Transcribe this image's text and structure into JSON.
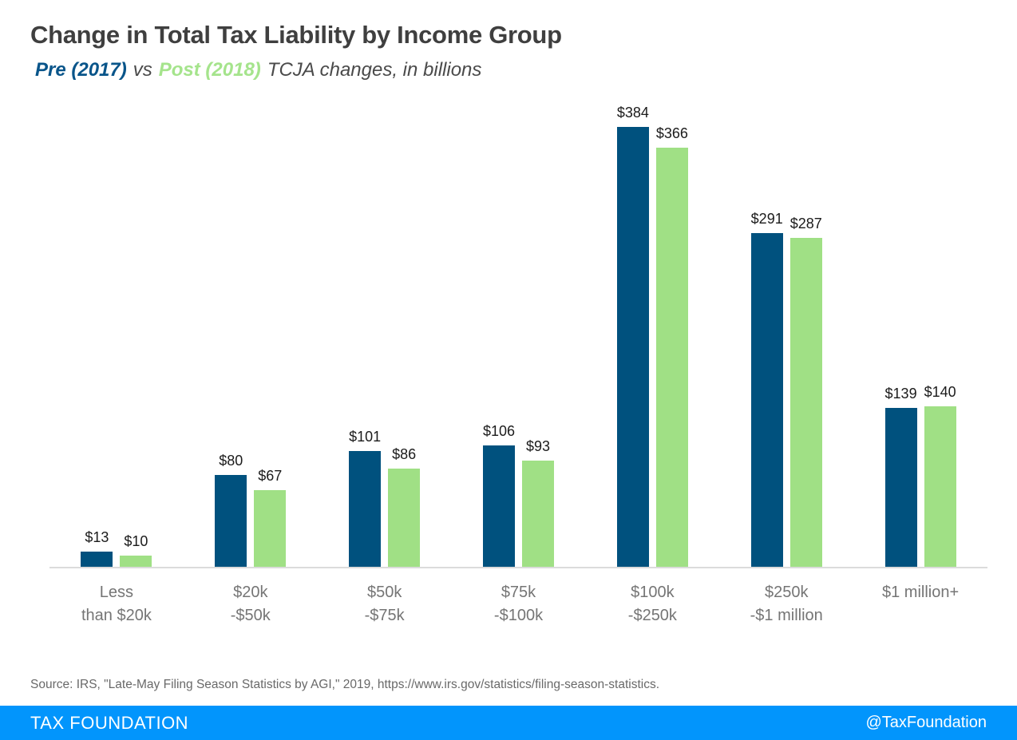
{
  "header": {
    "title": "Change in Total Tax Liability by Income Group",
    "subtitle": {
      "pre_label": "Pre (2017)",
      "vs": "vs",
      "post_label": "Post (2018)",
      "rest": "TCJA changes, in billions"
    }
  },
  "chart_data": {
    "type": "bar",
    "title": "Change in Total Tax Liability by Income Group",
    "subtitle": "Pre (2017) vs Post (2018) TCJA changes, in billions",
    "categories": [
      [
        "Less",
        "than $20k"
      ],
      [
        "$20k",
        "-$50k"
      ],
      [
        "$50k",
        "-$75k"
      ],
      [
        "$75k",
        "-$100k"
      ],
      [
        "$100k",
        "-$250k"
      ],
      [
        "$250k",
        "-$1 million"
      ],
      [
        "$1 million+"
      ]
    ],
    "series": [
      {
        "name": "Pre (2017)",
        "color": "#00517E",
        "values": [
          13,
          80,
          101,
          106,
          384,
          291,
          139
        ]
      },
      {
        "name": "Post (2018)",
        "color": "#A0E085",
        "values": [
          10,
          67,
          86,
          93,
          366,
          287,
          140
        ]
      }
    ],
    "unit": "billions of dollars",
    "value_prefix": "$",
    "ylim": [
      0,
      384
    ],
    "grid": false,
    "data_labels": true,
    "legend_position": "inline-in-subtitle"
  },
  "source": "Source: IRS, \"Late-May Filing Season Statistics by AGI,\" 2019, https://www.irs.gov/statistics/filing-season-statistics.",
  "footer": {
    "brand": "TAX FOUNDATION",
    "handle": "@TaxFoundation"
  },
  "colors": {
    "pre_bar": "#00517E",
    "post_bar": "#A0E085",
    "pre_text": "#09558A",
    "post_text": "#A5E48C",
    "title_text": "#3F3F3F",
    "axis_label_text": "#757575",
    "axis_line": "#DBDBDB",
    "footer_bg": "#0295FC",
    "footer_text": "#FFFFFF"
  }
}
